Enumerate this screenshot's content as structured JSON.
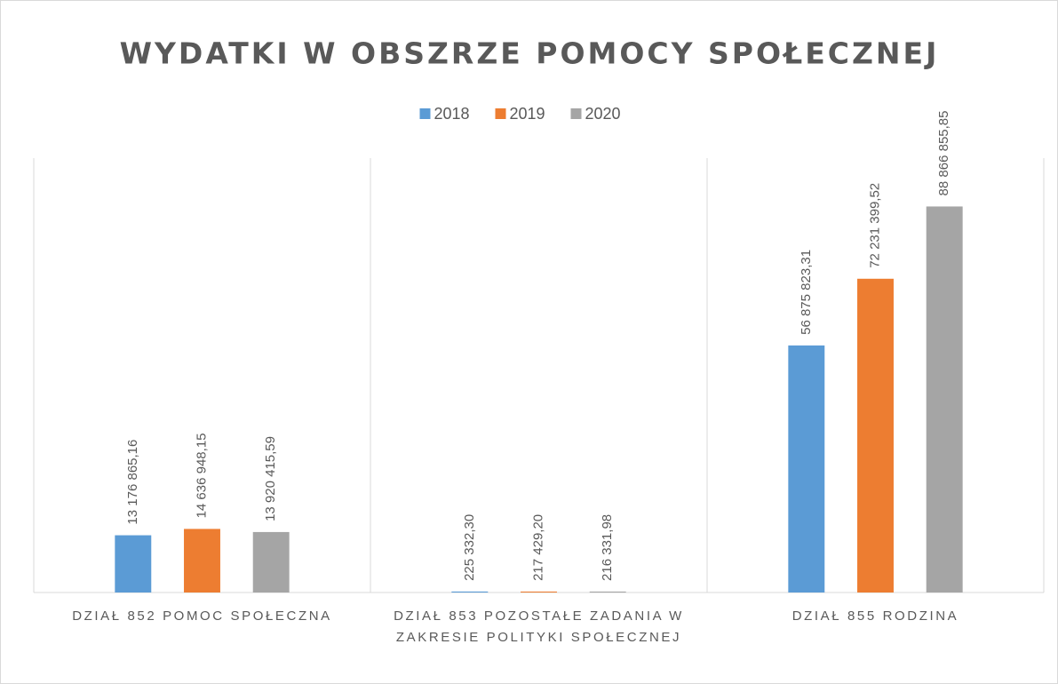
{
  "chart_data": {
    "type": "bar",
    "title": "WYDATKI W OBSZRZE POMOCY SPOŁECZNEJ",
    "categories": [
      "DZIAŁ 852 POMOC SPOŁECZNA",
      "DZIAŁ 853 POZOSTAŁE ZADANIA W ZAKRESIE POLITYKI SPOŁECZNEJ",
      "DZIAŁ 855 RODZINA"
    ],
    "series": [
      {
        "name": "2018",
        "color": "#5b9bd5",
        "values": [
          13176865.16,
          225332.3,
          56875823.31
        ],
        "value_labels": [
          "13 176 865,16",
          "225 332,30",
          "56 875 823,31"
        ]
      },
      {
        "name": "2019",
        "color": "#ed7d31",
        "values": [
          14636948.15,
          217429.2,
          72231399.52
        ],
        "value_labels": [
          "14 636 948,15",
          "217 429,20",
          "72 231 399,52"
        ]
      },
      {
        "name": "2020",
        "color": "#a5a5a5",
        "values": [
          13920415.59,
          216331.98,
          88866855.85
        ],
        "value_labels": [
          "13 920 415,59",
          "216 331,98",
          "88 866 855,85"
        ]
      }
    ],
    "ylim": [
      0,
      100000000
    ],
    "legend": "top"
  }
}
